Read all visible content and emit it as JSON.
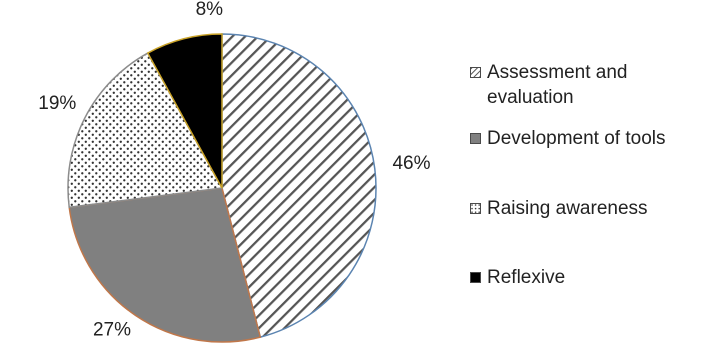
{
  "chart_data": {
    "type": "pie",
    "title": "",
    "categories": [
      "Assessment and evaluation",
      "Development of tools",
      "Raising awareness",
      "Reflexive"
    ],
    "values": [
      46,
      27,
      19,
      8
    ],
    "value_labels": [
      "46%",
      "27%",
      "19%",
      "8%"
    ],
    "unit": "%",
    "start_angle": "12 o'clock",
    "direction": "clockwise",
    "legend_position": "right",
    "fills": [
      "diagonal-hatch",
      "solid-gray",
      "dotted",
      "solid-black"
    ],
    "colors": {
      "hatch_stroke": "#555555",
      "gray": "#808080",
      "dots": "#333333",
      "black": "#000000",
      "slice_borders": [
        "#5b84b1",
        "#c0774a",
        "#8c8c8c",
        "#c9a227"
      ]
    }
  }
}
